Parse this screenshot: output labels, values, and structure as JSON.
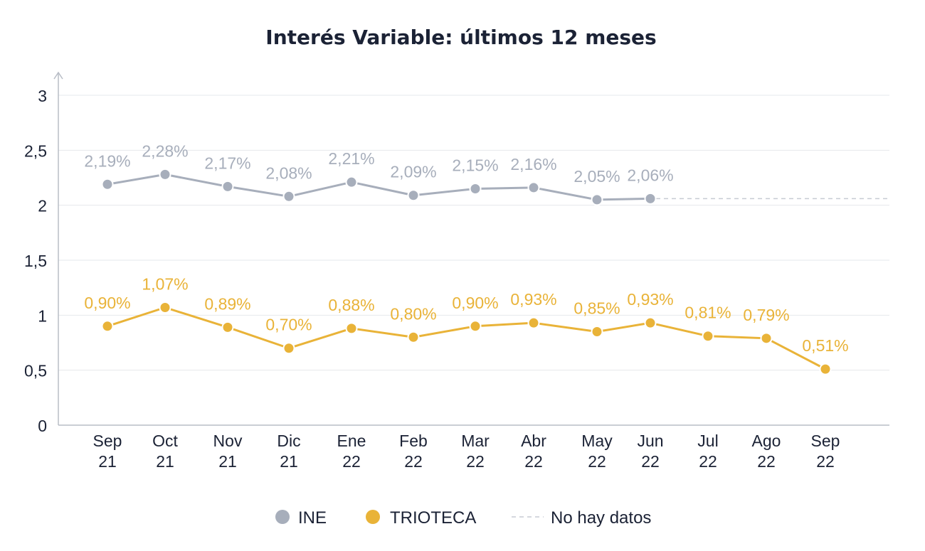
{
  "chart_data": {
    "type": "line",
    "title": "Interés Variable: últimos 12 meses",
    "xlabel": "",
    "ylabel": "",
    "ylim": [
      0,
      3
    ],
    "yticks": [
      "0",
      "0,5",
      "1",
      "1,5",
      "2",
      "2,5",
      "3"
    ],
    "ytick_values": [
      0,
      0.5,
      1,
      1.5,
      2,
      2.5,
      3
    ],
    "grid": true,
    "legend_position": "bottom-center",
    "categories": [
      {
        "top": "Sep",
        "bottom": "21"
      },
      {
        "top": "Oct",
        "bottom": "21"
      },
      {
        "top": "Nov",
        "bottom": "21"
      },
      {
        "top": "Dic",
        "bottom": "21"
      },
      {
        "top": "Ene",
        "bottom": "22"
      },
      {
        "top": "Feb",
        "bottom": "22"
      },
      {
        "top": "Mar",
        "bottom": "22"
      },
      {
        "top": "Abr",
        "bottom": "22"
      },
      {
        "top": "May",
        "bottom": "22"
      },
      {
        "top": "Jun",
        "bottom": "22"
      },
      {
        "top": "Jul",
        "bottom": "22"
      },
      {
        "top": "Ago",
        "bottom": "22"
      },
      {
        "top": "Sep",
        "bottom": "22"
      }
    ],
    "series": [
      {
        "name": "INE",
        "color": "#a7aebb",
        "values": [
          2.19,
          2.28,
          2.17,
          2.08,
          2.21,
          2.09,
          2.15,
          2.16,
          2.05,
          2.06,
          null,
          null,
          null
        ],
        "labels": [
          "2,19%",
          "2,28%",
          "2,17%",
          "2,08%",
          "2,21%",
          "2,09%",
          "2,15%",
          "2,16%",
          "2,05%",
          "2,06%",
          null,
          null,
          null
        ],
        "no_data_extension": true
      },
      {
        "name": "TRIOTECA",
        "color": "#e9b338",
        "values": [
          0.9,
          1.07,
          0.89,
          0.7,
          0.88,
          0.8,
          0.9,
          0.93,
          0.85,
          0.93,
          0.81,
          0.79,
          0.51
        ],
        "labels": [
          "0,90%",
          "1,07%",
          "0,89%",
          "0,70%",
          "0,88%",
          "0,80%",
          "0,90%",
          "0,93%",
          "0,85%",
          "0,93%",
          "0,81%",
          "0,79%",
          "0,51%"
        ]
      }
    ],
    "legend": [
      {
        "name": "INE",
        "type": "dot",
        "color": "#a7aebb"
      },
      {
        "name": "TRIOTECA",
        "type": "dot",
        "color": "#e9b338"
      },
      {
        "name": "No hay datos",
        "type": "dash",
        "color": "#c7ccd4"
      }
    ]
  }
}
